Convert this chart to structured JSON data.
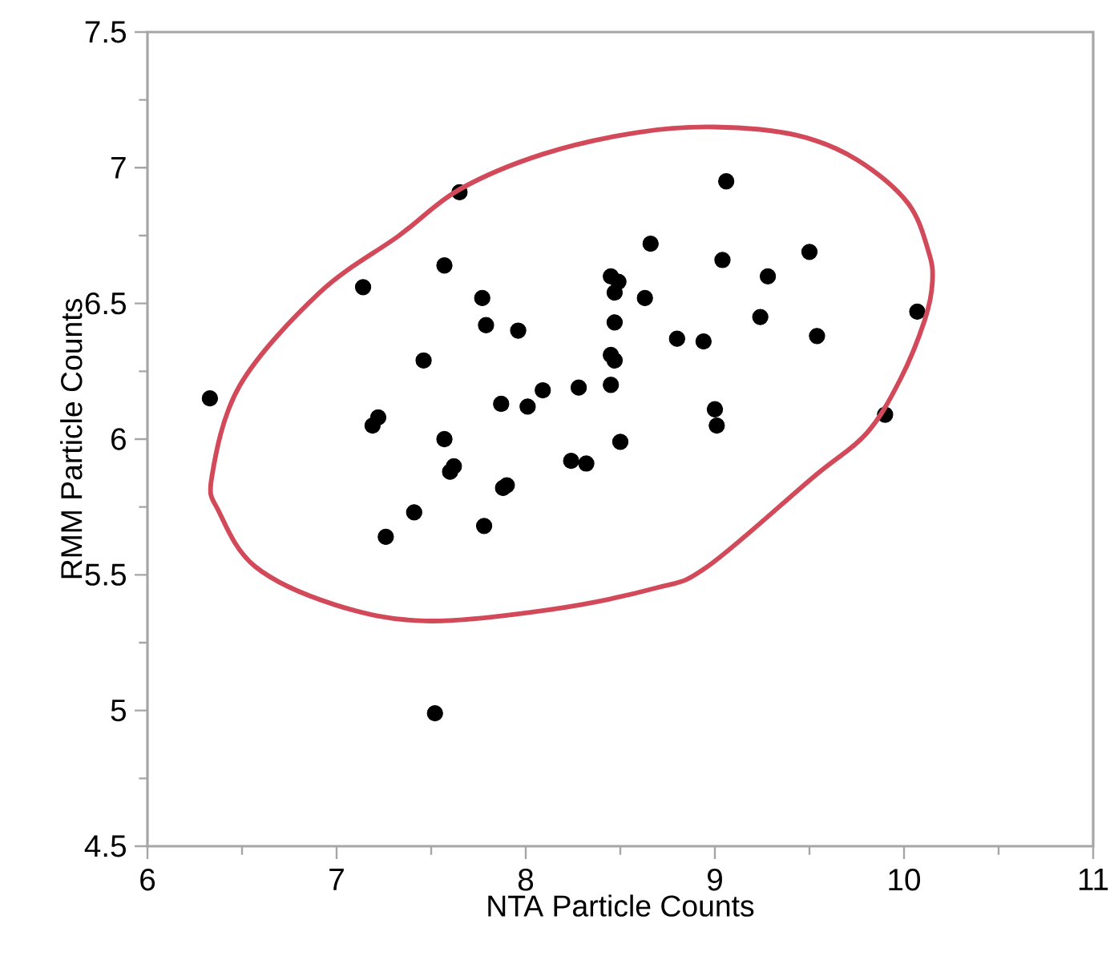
{
  "chart_data": {
    "type": "scatter",
    "xlabel": "NTA Particle Counts",
    "ylabel": "RMM Particle Counts",
    "xlim": [
      6,
      11
    ],
    "ylim": [
      4.5,
      7.5
    ],
    "xticks": [
      6,
      {
        "value": 6.5,
        "label": null
      },
      7,
      {
        "value": 7.5,
        "label": null
      },
      8,
      {
        "value": 8.5,
        "label": null
      },
      9,
      {
        "value": 9.5,
        "label": null
      },
      10,
      {
        "value": 10.5,
        "label": null
      },
      11
    ],
    "yticks": [
      4.5,
      {
        "value": 4.75,
        "label": null
      },
      5,
      {
        "value": 5.25,
        "label": null
      },
      5.5,
      {
        "value": 5.75,
        "label": null
      },
      6,
      {
        "value": 6.25,
        "label": null
      },
      6.5,
      {
        "value": 6.75,
        "label": null
      },
      7,
      {
        "value": 7.25,
        "label": null
      },
      7.5
    ],
    "marker": "circle",
    "grid": false,
    "series": [
      {
        "type": "scatter",
        "color": "#000000",
        "x": [
          6.33,
          7.14,
          7.65,
          7.57,
          7.77,
          7.79,
          7.96,
          7.46,
          7.22,
          7.19,
          7.57,
          7.62,
          7.6,
          7.87,
          8.01,
          8.09,
          8.28,
          7.88,
          7.9,
          7.41,
          7.26,
          7.78,
          8.24,
          8.32,
          8.45,
          8.49,
          8.47,
          8.47,
          8.45,
          8.47,
          8.45,
          8.5,
          9.06,
          8.66,
          9.04,
          9.5,
          9.28,
          8.63,
          9.24,
          8.8,
          8.94,
          9.54,
          10.07,
          9.0,
          9.01,
          9.9,
          7.52
        ],
        "values": [
          6.15,
          6.56,
          6.91,
          6.64,
          6.52,
          6.42,
          6.4,
          6.29,
          6.08,
          6.05,
          6.0,
          5.9,
          5.88,
          6.13,
          6.12,
          6.18,
          6.19,
          5.82,
          5.83,
          5.73,
          5.64,
          5.68,
          5.92,
          5.91,
          6.6,
          6.58,
          6.54,
          6.43,
          6.31,
          6.29,
          6.2,
          5.99,
          6.95,
          6.72,
          6.66,
          6.69,
          6.6,
          6.52,
          6.45,
          6.37,
          6.36,
          6.38,
          6.47,
          6.11,
          6.05,
          6.09,
          4.99
        ]
      }
    ]
  }
}
